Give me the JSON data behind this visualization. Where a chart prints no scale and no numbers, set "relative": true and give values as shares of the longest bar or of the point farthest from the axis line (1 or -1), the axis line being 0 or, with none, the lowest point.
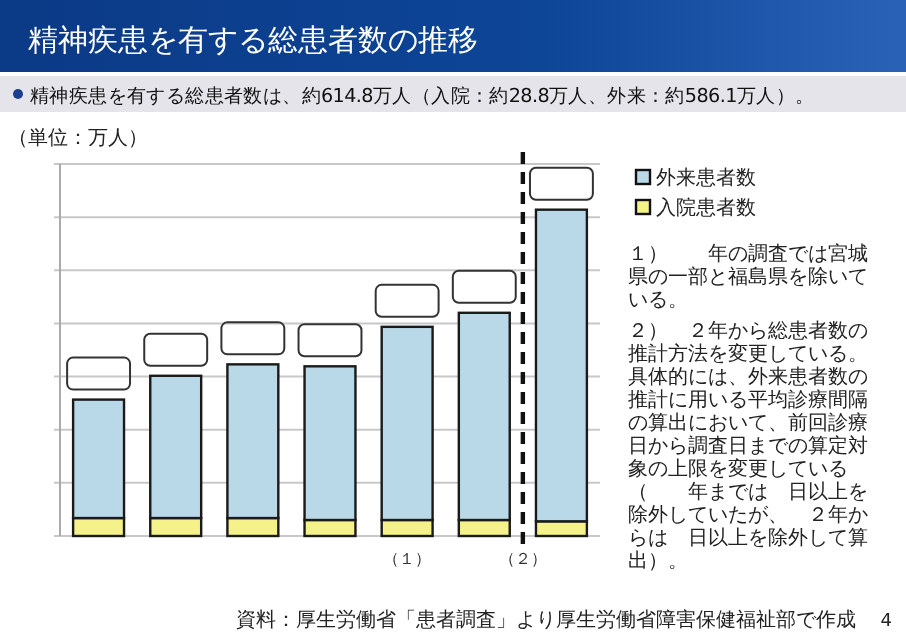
{
  "chart_data": {
    "type": "bar",
    "title": "精神疾患を有する総患者数の推移",
    "subtitle": "精神疾患を有する総患者数は、約614.8万人（入院：約28.8万人、外来：約586.1万人）。",
    "ylabel": "（単位：万人）",
    "relative": true,
    "stacked": true,
    "grid": "y",
    "legend": "right",
    "categories": [
      null,
      null,
      null,
      null,
      null,
      null,
      null
    ],
    "series": [
      {
        "name": "入院患者数",
        "color": "#f6f28a",
        "values": [
          0.055,
          0.055,
          0.055,
          0.049,
          0.049,
          0.049,
          0.045
        ]
      },
      {
        "name": "外来患者数",
        "color": "#b9d9e8",
        "values": [
          0.363,
          0.436,
          0.471,
          0.471,
          0.592,
          0.635,
          0.955
        ]
      }
    ],
    "annotations": [
      "（１）",
      "（２）",
      "１）　　年の調査では宮城県の一部と福島県を除いている。",
      "２）　２年から総患者数の推計方法を変更している。具体的には、外来患者数の推計に用いる平均診療間隔の算出において、前回診療日から調査日までの算定対象の上限を変更している（　　年までは　日以上を除外していたが、　２年からは　日以上を除外して算出）。",
      "資料：厚生労働省「患者調査」より厚生労働省障害保健福祉部で作成",
      "4"
    ]
  }
}
